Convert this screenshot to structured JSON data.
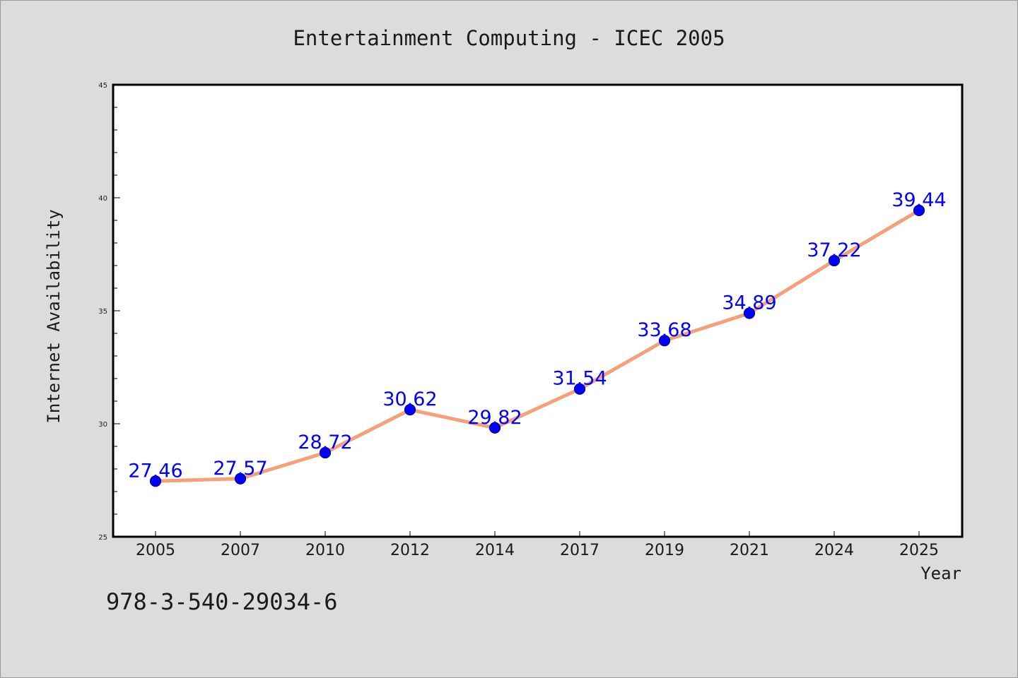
{
  "chart_data": {
    "type": "line",
    "title": "Entertainment Computing - ICEC 2005",
    "xlabel": "Year",
    "ylabel": "Internet Availability",
    "categories": [
      "2005",
      "2007",
      "2010",
      "2012",
      "2014",
      "2017",
      "2019",
      "2021",
      "2024",
      "2025"
    ],
    "series": [
      {
        "values": [
          27.46,
          27.57,
          28.72,
          30.62,
          29.82,
          31.54,
          33.68,
          34.89,
          37.22,
          39.44
        ],
        "labels": [
          "27.46",
          "27.57",
          "28.72",
          "30.62",
          "29.82",
          "31.54",
          "33.68",
          "34.89",
          "37.22",
          "39.44"
        ]
      }
    ],
    "ylim": [
      25,
      45
    ],
    "yticks": [
      "25",
      "30",
      "35",
      "40",
      "45"
    ],
    "y_minor_step": 1,
    "grid": false,
    "data_labels": true,
    "colors": {
      "line": "#f4a07a",
      "marker": "#0000ff",
      "marker_edge": "#00008b",
      "data_label": "#0000ff",
      "plot_background": "#ffffff",
      "figure_background": "#dcdcdc",
      "text": "#1a1a1a"
    }
  },
  "footer": {
    "isbn": "978-3-540-29034-6"
  }
}
